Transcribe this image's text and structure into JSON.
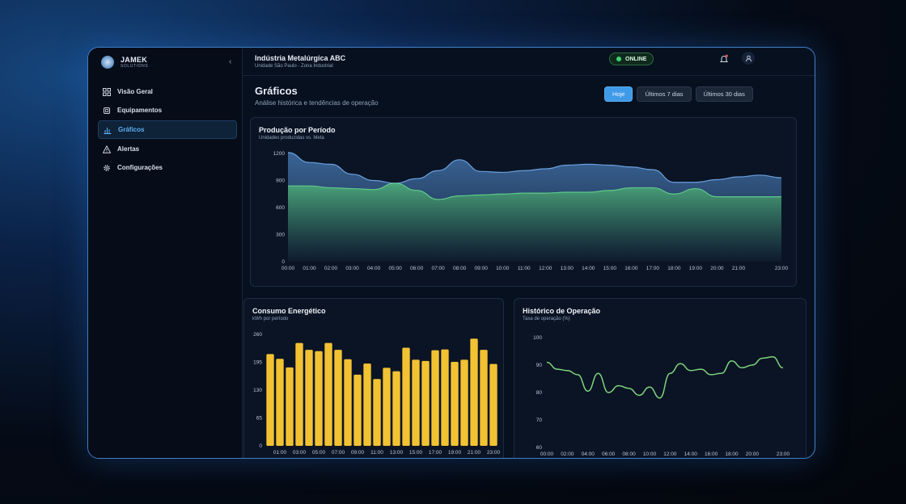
{
  "brand": {
    "name": "JAMEK",
    "sub": "SOLUTIONS"
  },
  "nav": [
    {
      "label": "Visão Geral",
      "icon": "grid-icon"
    },
    {
      "label": "Equipamentos",
      "icon": "chip-icon"
    },
    {
      "label": "Gráficos",
      "icon": "bar-chart-icon",
      "active": true
    },
    {
      "label": "Alertas",
      "icon": "warning-icon"
    },
    {
      "label": "Configurações",
      "icon": "gear-icon"
    }
  ],
  "header": {
    "company": "Indústria Metalúrgica ABC",
    "location": "Unidade São Paulo - Zona Industrial",
    "status": "ONLINE"
  },
  "page": {
    "title": "Gráficos",
    "subtitle": "Análise histórica e tendências de operação"
  },
  "filters": [
    {
      "label": "Hoje",
      "active": true
    },
    {
      "label": "Últimos 7 dias",
      "active": false
    },
    {
      "label": "Últimos 30 dias",
      "active": false
    }
  ],
  "colors": {
    "accent": "#3f9ae8",
    "production": "#4f86c6",
    "meta": "#4fb37a",
    "energy": "#f2c233",
    "operation": "#7ed37e"
  },
  "chart_data": [
    {
      "type": "area",
      "title": "Produção por Período",
      "subtitle": "Unidades produzidas vs. Meta",
      "x": [
        "00:00",
        "01:00",
        "02:00",
        "03:00",
        "04:00",
        "05:00",
        "06:00",
        "07:00",
        "08:00",
        "09:00",
        "10:00",
        "11:00",
        "12:00",
        "13:00",
        "14:00",
        "15:00",
        "16:00",
        "17:00",
        "18:00",
        "19:00",
        "20:00",
        "21:00",
        "22:00",
        "23:00"
      ],
      "x_tick_labels": [
        "00:00",
        "01:00",
        "02:00",
        "03:00",
        "04:00",
        "05:00",
        "06:00",
        "07:00",
        "08:00",
        "09:00",
        "10:00",
        "11:00",
        "12:00",
        "13:00",
        "14:00",
        "15:00",
        "16:00",
        "17:00",
        "18:00",
        "19:00",
        "20:00",
        "21:00",
        "",
        "23:00"
      ],
      "y_ticks": [
        0,
        300,
        600,
        900,
        1200
      ],
      "ylim": [
        0,
        1200
      ],
      "series": [
        {
          "values": [
            1210,
            1100,
            1080,
            970,
            900,
            870,
            920,
            1010,
            1130,
            1000,
            990,
            1010,
            1030,
            1070,
            1080,
            1070,
            1050,
            1020,
            880,
            880,
            910,
            940,
            960,
            930
          ]
        },
        {
          "values": [
            840,
            840,
            820,
            810,
            800,
            870,
            790,
            690,
            730,
            740,
            750,
            760,
            760,
            770,
            770,
            790,
            820,
            820,
            750,
            810,
            720,
            720,
            720,
            720
          ]
        }
      ]
    },
    {
      "type": "bar",
      "title": "Consumo Energético",
      "subtitle": "kWh por período",
      "categories": [
        "00:00",
        "01:00",
        "02:00",
        "03:00",
        "04:00",
        "05:00",
        "06:00",
        "07:00",
        "08:00",
        "09:00",
        "10:00",
        "11:00",
        "12:00",
        "13:00",
        "14:00",
        "15:00",
        "16:00",
        "17:00",
        "18:00",
        "19:00",
        "20:00",
        "21:00",
        "22:00",
        "23:00"
      ],
      "x_tick_labels": [
        "",
        "01:00",
        "",
        "03:00",
        "",
        "05:00",
        "",
        "07:00",
        "",
        "09:00",
        "",
        "11:00",
        "",
        "13:00",
        "",
        "15:00",
        "",
        "17:00",
        "",
        "19:00",
        "",
        "21:00",
        "",
        "23:00"
      ],
      "values": [
        214,
        203,
        183,
        240,
        224,
        221,
        240,
        224,
        202,
        166,
        192,
        156,
        182,
        174,
        229,
        201,
        198,
        223,
        225,
        196,
        201,
        250,
        224,
        191
      ],
      "y_ticks": [
        0,
        65,
        130,
        195,
        260
      ],
      "ylim": [
        0,
        260
      ]
    },
    {
      "type": "line",
      "title": "Histórico de Operação",
      "subtitle": "Taxa de operação (%)",
      "x": [
        "00:00",
        "01:00",
        "02:00",
        "03:00",
        "04:00",
        "05:00",
        "06:00",
        "07:00",
        "08:00",
        "09:00",
        "10:00",
        "11:00",
        "12:00",
        "13:00",
        "14:00",
        "15:00",
        "16:00",
        "17:00",
        "18:00",
        "19:00",
        "20:00",
        "21:00",
        "22:00",
        "23:00"
      ],
      "x_tick_labels": [
        "00:00",
        "",
        "02:00",
        "",
        "04:00",
        "",
        "06:00",
        "",
        "08:00",
        "",
        "10:00",
        "",
        "12:00",
        "",
        "14:00",
        "",
        "16:00",
        "",
        "18:00",
        "",
        "20:00",
        "",
        "",
        "23:00"
      ],
      "values": [
        91,
        88.5,
        88,
        86.5,
        80.5,
        87,
        80,
        82.5,
        81.5,
        79,
        82,
        78,
        87,
        90.5,
        88,
        88.5,
        86.5,
        87,
        91.5,
        89,
        90,
        92.5,
        93,
        89
      ],
      "y_ticks": [
        60,
        70,
        80,
        90,
        100
      ],
      "ylim": [
        60,
        100
      ]
    }
  ]
}
